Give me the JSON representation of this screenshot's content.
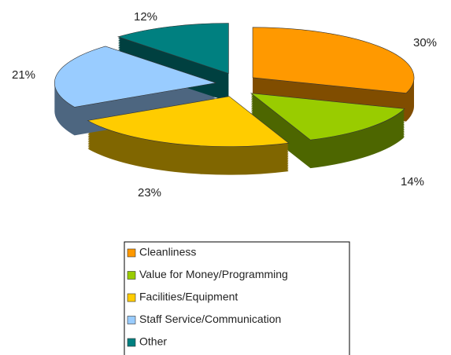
{
  "chart_data": {
    "type": "pie",
    "categories": [
      "Cleanliness",
      "Value for Money/Programming",
      "Facilities/Equipment",
      "Staff Service/Communication",
      "Other"
    ],
    "values": [
      30,
      14,
      23,
      21,
      12
    ],
    "value_labels": [
      "30%",
      "14%",
      "23%",
      "21%",
      "12%"
    ],
    "colors": [
      "#ff9900",
      "#99cc00",
      "#ffcc00",
      "#99ccff",
      "#008080"
    ],
    "legend": "bottom"
  }
}
